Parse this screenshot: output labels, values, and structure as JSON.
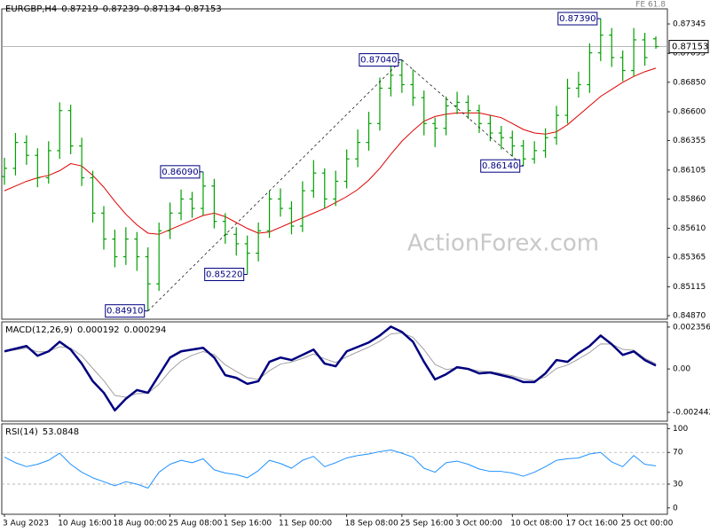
{
  "chart_data": [
    {
      "type": "ohlc",
      "title": "EURGBP,H4",
      "fe_label": "FE 61.8",
      "watermark": "ActionForex.com",
      "categories": [
        "3 Aug 2023",
        null,
        null,
        null,
        null,
        "10 Aug 16:00",
        null,
        null,
        null,
        null,
        "18 Aug 00:00",
        null,
        null,
        null,
        null,
        "25 Aug 08:00",
        null,
        null,
        null,
        null,
        "1 Sep 16:00",
        null,
        null,
        null,
        null,
        "11 Sep 00:00",
        null,
        null,
        null,
        null,
        null,
        "18 Sep 08:00",
        null,
        null,
        null,
        null,
        "25 Sep 16:00",
        null,
        null,
        null,
        null,
        "3 Oct 00:00",
        null,
        null,
        null,
        null,
        "10 Oct 08:00",
        null,
        null,
        null,
        null,
        "17 Oct 16:00",
        null,
        null,
        null,
        null,
        "25 Oct 00:00",
        null,
        null,
        null
      ],
      "open": [
        0.8605,
        0.8612,
        0.8634,
        0.8623,
        0.8604,
        0.8627,
        0.8661,
        0.8631,
        0.8604,
        0.8574,
        0.8552,
        0.8537,
        0.8552,
        0.8537,
        0.8514,
        0.8559,
        0.8574,
        0.8586,
        0.8578,
        0.8597,
        0.8567,
        0.8556,
        0.8548,
        0.854,
        0.8559,
        0.8586,
        0.8578,
        0.8563,
        0.8593,
        0.8608,
        0.8586,
        0.8601,
        0.862,
        0.8634,
        0.865,
        0.868,
        0.8691,
        0.8683,
        0.8672,
        0.865,
        0.8646,
        0.8665,
        0.8668,
        0.8661,
        0.865,
        0.8642,
        0.8638,
        0.8631,
        0.862,
        0.8627,
        0.8638,
        0.8657,
        0.868,
        0.8683,
        0.871,
        0.8725,
        0.8706,
        0.8695,
        0.8721,
        0.87219
      ],
      "high": [
        0.8621,
        0.8642,
        0.864,
        0.8629,
        0.8635,
        0.8668,
        0.8666,
        0.8638,
        0.861,
        0.858,
        0.856,
        0.8562,
        0.8558,
        0.8545,
        0.8566,
        0.8583,
        0.8594,
        0.8592,
        0.8609,
        0.8603,
        0.8574,
        0.8562,
        0.8555,
        0.8566,
        0.8593,
        0.8595,
        0.8584,
        0.8601,
        0.8619,
        0.8612,
        0.861,
        0.8628,
        0.8645,
        0.866,
        0.8689,
        0.87,
        0.8704,
        0.8696,
        0.8678,
        0.8655,
        0.8673,
        0.8677,
        0.8674,
        0.8666,
        0.8657,
        0.8648,
        0.8644,
        0.8636,
        0.8635,
        0.8646,
        0.8665,
        0.8688,
        0.8694,
        0.8718,
        0.8739,
        0.8731,
        0.8712,
        0.8731,
        0.8727,
        0.87239
      ],
      "low": [
        0.8598,
        0.8606,
        0.8615,
        0.8596,
        0.8599,
        0.862,
        0.8624,
        0.8597,
        0.8566,
        0.8543,
        0.8528,
        0.853,
        0.8525,
        0.8491,
        0.8508,
        0.8552,
        0.8568,
        0.857,
        0.8572,
        0.8561,
        0.8548,
        0.8538,
        0.8522,
        0.8533,
        0.8553,
        0.8571,
        0.8556,
        0.8558,
        0.8587,
        0.8578,
        0.858,
        0.8595,
        0.8613,
        0.8627,
        0.8644,
        0.8673,
        0.8676,
        0.8665,
        0.864,
        0.863,
        0.864,
        0.8658,
        0.8654,
        0.8642,
        0.8635,
        0.8628,
        0.8622,
        0.8614,
        0.8616,
        0.8621,
        0.8632,
        0.865,
        0.8672,
        0.8676,
        0.8703,
        0.8698,
        0.8686,
        0.869,
        0.8699,
        0.87134
      ],
      "close": [
        0.8612,
        0.8634,
        0.8623,
        0.8604,
        0.8627,
        0.8661,
        0.8631,
        0.8604,
        0.8574,
        0.8552,
        0.8537,
        0.8552,
        0.8537,
        0.8514,
        0.8559,
        0.8574,
        0.8586,
        0.8578,
        0.8597,
        0.8567,
        0.8556,
        0.8548,
        0.854,
        0.8559,
        0.8586,
        0.8578,
        0.8563,
        0.8593,
        0.8608,
        0.8586,
        0.8601,
        0.862,
        0.8634,
        0.865,
        0.868,
        0.8691,
        0.8683,
        0.8672,
        0.865,
        0.8646,
        0.8665,
        0.8668,
        0.8661,
        0.865,
        0.8642,
        0.8638,
        0.8631,
        0.862,
        0.8627,
        0.8638,
        0.8657,
        0.868,
        0.8683,
        0.871,
        0.8725,
        0.8706,
        0.8695,
        0.8721,
        0.8706,
        0.87153
      ],
      "color": "#00a000",
      "ma": {
        "color": "#e00000",
        "values": [
          0.8593,
          0.8597,
          0.8601,
          0.8604,
          0.8606,
          0.861,
          0.8616,
          0.8614,
          0.8606,
          0.8596,
          0.8584,
          0.8573,
          0.8564,
          0.8557,
          0.8556,
          0.856,
          0.8564,
          0.8568,
          0.8572,
          0.8574,
          0.8571,
          0.8566,
          0.8561,
          0.8557,
          0.8558,
          0.8562,
          0.8566,
          0.857,
          0.8574,
          0.8578,
          0.8583,
          0.8588,
          0.8594,
          0.8602,
          0.8612,
          0.8624,
          0.8635,
          0.8644,
          0.8652,
          0.8656,
          0.8658,
          0.8659,
          0.8659,
          0.8659,
          0.8657,
          0.8655,
          0.865,
          0.8645,
          0.8642,
          0.8641,
          0.8643,
          0.8649,
          0.8657,
          0.8665,
          0.8673,
          0.8679,
          0.8685,
          0.869,
          0.8694,
          0.8697
        ]
      },
      "annotations": [
        {
          "value": 0.8491,
          "label": "0.84910"
        },
        {
          "value": 0.8609,
          "label": "0.86090"
        },
        {
          "value": 0.8522,
          "label": "0.85220"
        },
        {
          "value": 0.8704,
          "label": "0.87040"
        },
        {
          "value": 0.8614,
          "label": "0.86140"
        },
        {
          "value": 0.8739,
          "label": "0.87390"
        }
      ],
      "ylim": [
        0.8484,
        0.87473
      ],
      "yticks": [
        0.87345,
        0.87095,
        {
          "value": 0.8685,
          "label": "0.86850"
        },
        {
          "value": 0.866,
          "label": "0.86600"
        },
        0.86355,
        0.86105,
        {
          "value": 0.8586,
          "label": "0.85860"
        },
        {
          "value": 0.8561,
          "label": "0.85610"
        },
        0.85365,
        0.85115,
        {
          "value": 0.8487,
          "label": "0.84870"
        }
      ]
    },
    {
      "type": "line",
      "title": "MACD(12,26,9)",
      "series": [
        {
          "color": "#000080",
          "values": [
            0.00099,
            0.00114,
            0.00129,
            0.00074,
            0.00099,
            0.00153,
            0.00109,
            0.0003,
            -0.00069,
            -0.00134,
            -0.00233,
            -0.00168,
            -0.00119,
            -0.00134,
            -0.00035,
            0.00064,
            0.00099,
            0.00109,
            0.00119,
            0.00064,
            -0.00035,
            -0.0005,
            -0.00084,
            -0.00069,
            0.0004,
            0.00064,
            0.0005,
            0.00079,
            0.00109,
            0.0003,
            0.00015,
            0.00099,
            0.00124,
            0.00149,
            0.00188,
            0.00238,
            0.00208,
            0.00153,
            0.0004,
            -0.00059,
            -0.0003,
            0.0001,
            0,
            -0.00025,
            -0.0002,
            -0.00035,
            -0.0005,
            -0.00074,
            -0.00074,
            -0.00025,
            0.0005,
            0.0004,
            0.00089,
            0.00129,
            0.00188,
            0.00139,
            0.00079,
            0.00099,
            0.0005,
            0.000192
          ]
        },
        {
          "color": "#a0a0a0",
          "values": [
            0.001,
            0.00107,
            0.00118,
            0.00096,
            0.00098,
            0.00125,
            0.00117,
            0.00074,
            3e-05,
            -0.00066,
            -0.00149,
            -0.00159,
            -0.00139,
            -0.00137,
            -0.00086,
            -0.00011,
            0.00044,
            0.00077,
            0.00098,
            0.00081,
            0.00023,
            -0.00014,
            -0.00049,
            -0.00059,
            -0.0001,
            0.00027,
            0.00039,
            0.00059,
            0.00084,
            0.00057,
            0.00036,
            0.00068,
            0.00096,
            0.00123,
            0.00156,
            0.00197,
            0.00203,
            0.00178,
            0.00109,
            0.00025,
            -3e-05,
            4e-05,
            2e-05,
            -0.00012,
            -0.00016,
            -0.00026,
            -0.00038,
            -0.00056,
            -0.00065,
            -0.00045,
            3e-05,
            0.00022,
            0.00056,
            0.00093,
            0.00141,
            0.0014,
            0.0011,
            0.00105,
            0.0006,
            0.000294
          ]
        }
      ],
      "ylim": [
        -0.00294,
        0.00265
      ],
      "yticks": [
        0.002356,
        {
          "value": 0,
          "label": "0.00"
        },
        -0.002442
      ]
    },
    {
      "type": "line",
      "title": "RSI(14)",
      "grid": true,
      "series": [
        {
          "color": "#1e90ff",
          "values": [
            64,
            57,
            52,
            55,
            60,
            69,
            55,
            45,
            38,
            33,
            28,
            33,
            30,
            25,
            45,
            55,
            60,
            57,
            62,
            48,
            44,
            42,
            38,
            47,
            60,
            56,
            50,
            60,
            65,
            52,
            57,
            63,
            66,
            68,
            71,
            73,
            69,
            64,
            50,
            45,
            57,
            59,
            55,
            49,
            46,
            46,
            44,
            40,
            45,
            52,
            60,
            62,
            63,
            68,
            70,
            58,
            52,
            66,
            55,
            53.0848
          ]
        }
      ],
      "ylim": [
        -8,
        106
      ],
      "yticks": [
        100,
        70,
        30,
        0
      ]
    }
  ]
}
